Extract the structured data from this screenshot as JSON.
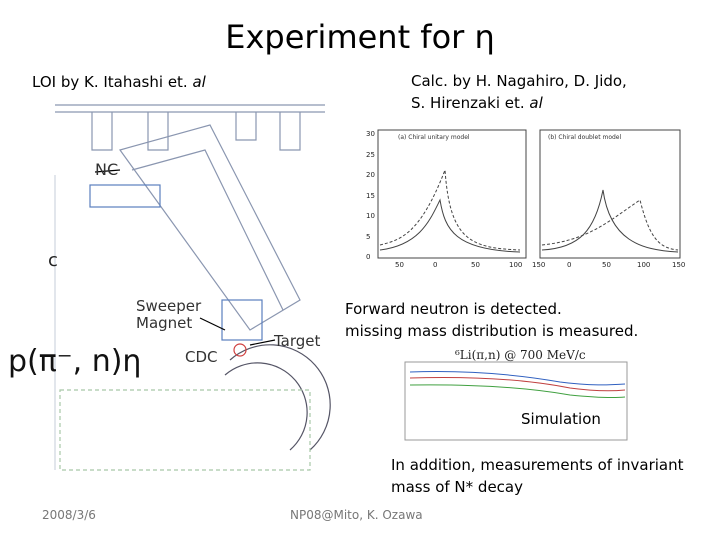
{
  "header": {
    "title": "Experiment for η"
  },
  "left_caption": {
    "text": "LOI by K. Itahashi et. ",
    "emphasis": "al"
  },
  "right_caption": {
    "line1": "Calc. by H. Nagahiro, D. Jido,",
    "line2": "S. Hirenzaki et. ",
    "emphasis": "al"
  },
  "diagram": {
    "labels": {
      "nc": "NC",
      "c": "c",
      "sweeper": "Sweeper",
      "magnet": "Magnet",
      "cdc": "CDC",
      "target": "Target",
      "reaction": "p(π⁻, n)η"
    }
  },
  "calc_plot": {
    "panel_a": "(a) Chiral unitary model",
    "panel_b": "(b) Chiral doublet model",
    "yticks": [
      "0",
      "5",
      "10",
      "15",
      "20",
      "25",
      "30"
    ],
    "xticks_a": [
      "50",
      "0",
      "50",
      "100"
    ],
    "xticks_b": [
      "150",
      "0",
      "50",
      "100",
      "150"
    ]
  },
  "notes": {
    "line1": "Forward neutron is detected.",
    "line2": "missing mass distribution is measured."
  },
  "simulation": {
    "plot_title": "⁶Li(π,n) @ 700 MeV/c",
    "label": "Simulation"
  },
  "addition": {
    "line1": "In addition, measurements of invariant",
    "line2": "mass of N* decay"
  },
  "footer": {
    "date": "2008/3/6",
    "venue": "NP08@Mito, K. Ozawa"
  }
}
